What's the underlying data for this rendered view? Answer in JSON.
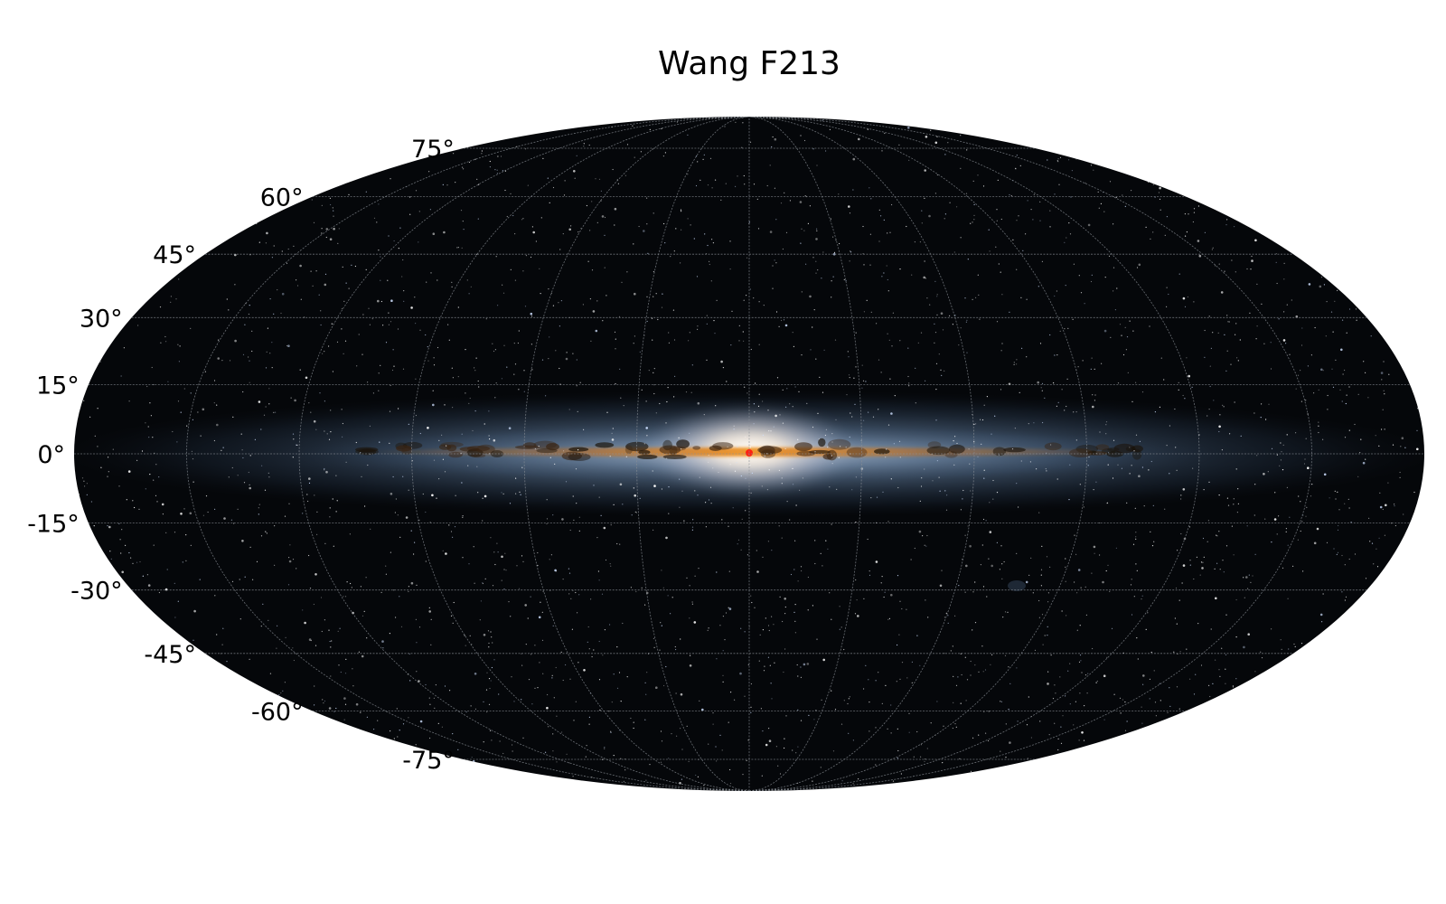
{
  "title": "Wang F213",
  "projection": "Mollweide",
  "latitude_labels": [
    {
      "lat": 75,
      "text": "75°"
    },
    {
      "lat": 60,
      "text": "60°"
    },
    {
      "lat": 45,
      "text": "45°"
    },
    {
      "lat": 30,
      "text": "30°"
    },
    {
      "lat": 15,
      "text": "15°"
    },
    {
      "lat": 0,
      "text": "0°"
    },
    {
      "lat": -15,
      "text": "-15°"
    },
    {
      "lat": -30,
      "text": "-30°"
    },
    {
      "lat": -45,
      "text": "-45°"
    },
    {
      "lat": -60,
      "text": "-60°"
    },
    {
      "lat": -75,
      "text": "-75°"
    }
  ],
  "graticule": {
    "latitudes": [
      -75,
      -60,
      -45,
      -30,
      -15,
      0,
      15,
      30,
      45,
      60,
      75
    ],
    "longitudes": [
      -150,
      -120,
      -90,
      -60,
      -30,
      0,
      30,
      60,
      90,
      120,
      150
    ]
  },
  "colors": {
    "sky": "#05070a",
    "grid": "#8a8f96",
    "band_blue": "#6f8fb5",
    "dust_orange": "#d2781e",
    "core_white": "#fff4e6",
    "core_red": "#ff2010"
  }
}
